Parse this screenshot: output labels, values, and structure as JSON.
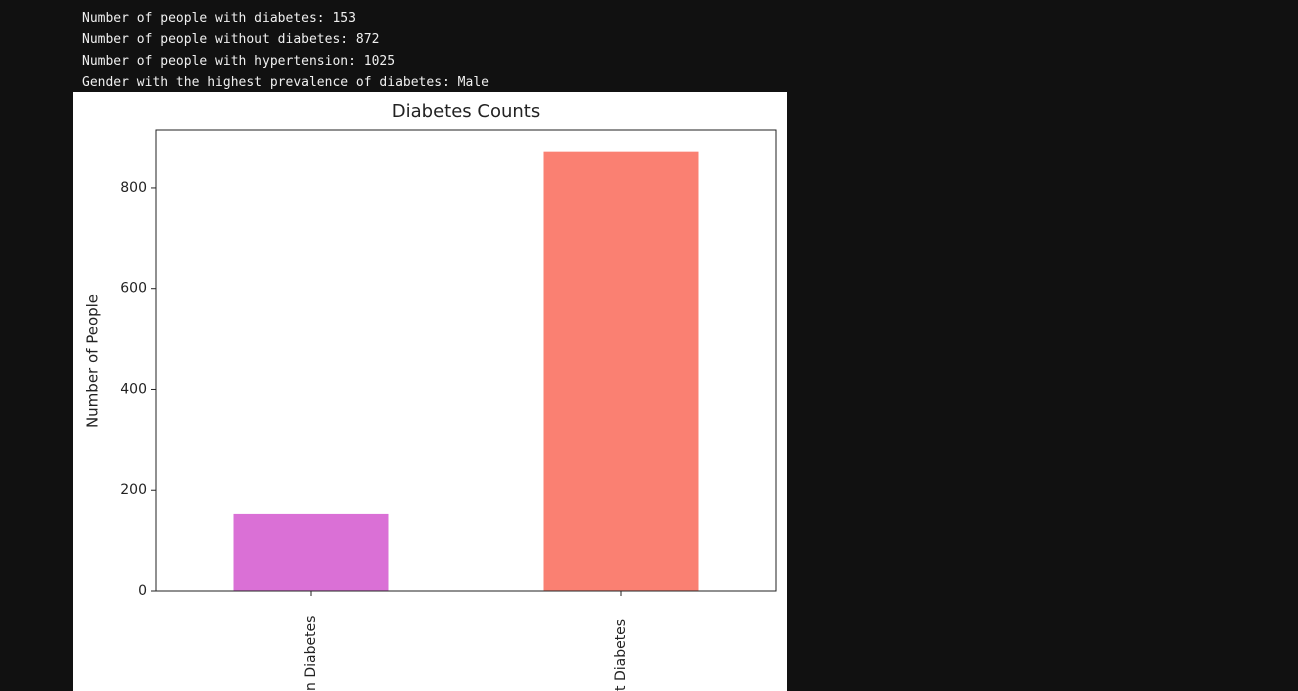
{
  "output_lines": [
    "Number of people with diabetes: 153",
    "Number of people without diabetes: 872",
    "Number of people with hypertension: 1025",
    "Gender with the highest prevalence of diabetes: Male"
  ],
  "chart_data": {
    "type": "bar",
    "title": "Diabetes Counts",
    "y_label": "Number of People",
    "categories": [
      "n Diabetes",
      "t Diabetes"
    ],
    "values": [
      153,
      872
    ],
    "colors": [
      "#da70d6",
      "#fa8072"
    ],
    "ylim": [
      0,
      915
    ],
    "yticks": [
      0,
      200,
      400,
      600,
      800
    ]
  }
}
